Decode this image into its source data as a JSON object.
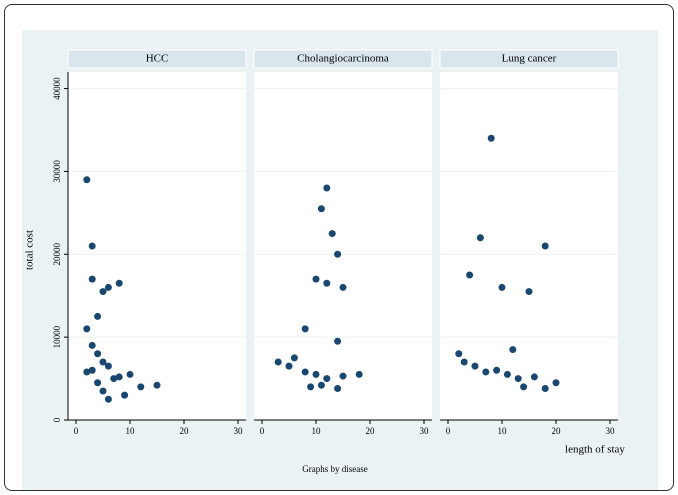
{
  "chart_data": {
    "type": "scatter",
    "y_label": "total cost",
    "x_label": "length of stay",
    "note": "Graphs by disease",
    "color": "#1a476f",
    "xlim": [
      0,
      30
    ],
    "xticks": [
      0,
      10,
      20,
      30
    ],
    "ylim": [
      0,
      42000
    ],
    "yticks": [
      0,
      10000,
      20000,
      30000,
      40000
    ],
    "grid": true,
    "facets": [
      {
        "title": "HCC",
        "x": [
          2,
          3,
          3,
          6,
          5,
          8,
          4,
          2,
          3,
          4,
          5,
          6,
          3,
          2,
          7,
          8,
          10,
          4,
          5,
          9,
          12,
          15,
          6
        ],
        "y": [
          29000,
          21000,
          17000,
          16000,
          15500,
          16500,
          12500,
          11000,
          9000,
          8000,
          7000,
          6500,
          6000,
          5800,
          5000,
          5200,
          5500,
          4500,
          3500,
          3000,
          4000,
          4200,
          2500
        ]
      },
      {
        "title": "Cholangiocarcinoma",
        "x": [
          12,
          11,
          13,
          14,
          10,
          12,
          15,
          8,
          14,
          6,
          3,
          5,
          8,
          10,
          12,
          15,
          18,
          9,
          11,
          14
        ],
        "y": [
          28000,
          25500,
          22500,
          20000,
          17000,
          16500,
          16000,
          11000,
          9500,
          7500,
          7000,
          6500,
          5800,
          5500,
          5000,
          5300,
          5500,
          4000,
          4200,
          3800
        ]
      },
      {
        "title": "Lung cancer",
        "x": [
          8,
          6,
          18,
          4,
          10,
          15,
          2,
          12,
          3,
          5,
          7,
          9,
          11,
          13,
          16,
          20,
          14,
          18
        ],
        "y": [
          34000,
          22000,
          21000,
          17500,
          16000,
          15500,
          8000,
          8500,
          7000,
          6500,
          5800,
          6000,
          5500,
          5000,
          5200,
          4500,
          4000,
          3800
        ]
      }
    ]
  }
}
